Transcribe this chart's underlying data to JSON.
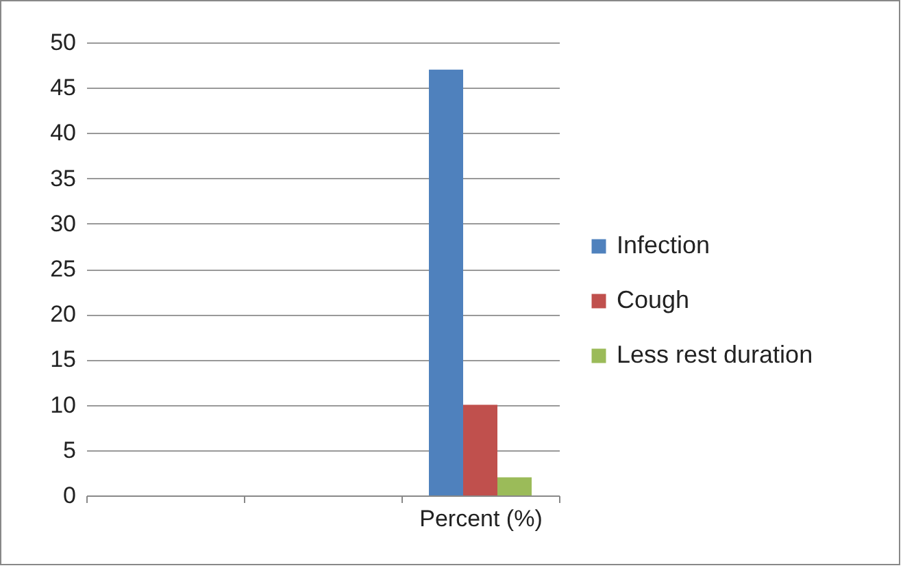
{
  "chart_data": {
    "type": "bar",
    "categories": [
      null,
      null,
      "Percent (%)"
    ],
    "series": [
      {
        "name": "Infection",
        "color": "#4f81bd",
        "values": [
          null,
          null,
          47
        ]
      },
      {
        "name": "Cough",
        "color": "#c0504d",
        "values": [
          null,
          null,
          10
        ]
      },
      {
        "name": "Less rest duration",
        "color": "#9bbb59",
        "values": [
          null,
          null,
          2
        ]
      }
    ],
    "ylim": [
      0,
      50
    ],
    "yticks": [
      0,
      5,
      10,
      15,
      20,
      25,
      30,
      35,
      40,
      45,
      50
    ],
    "grid": "y",
    "legend": "right"
  }
}
